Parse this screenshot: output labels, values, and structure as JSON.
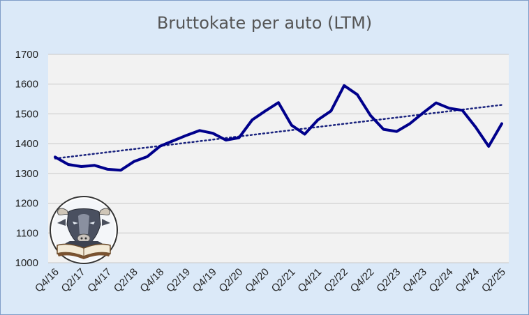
{
  "chart_data": {
    "type": "line",
    "title": "Bruttokate per auto (LTM)",
    "xlabel": "",
    "ylabel": "",
    "ylim": [
      1000,
      1700
    ],
    "yticks": [
      1000,
      1100,
      1200,
      1300,
      1400,
      1500,
      1600,
      1700
    ],
    "grid": true,
    "colors": {
      "series": "#00008b",
      "trend": "#1a237e",
      "background": "#dbe9f8",
      "plot": "#f2f2f2"
    },
    "x": [
      "Q4/16",
      "Q1/17",
      "Q2/17",
      "Q3/17",
      "Q4/17",
      "Q1/18",
      "Q2/18",
      "Q3/18",
      "Q4/18",
      "Q1/19",
      "Q2/19",
      "Q3/19",
      "Q4/19",
      "Q1/20",
      "Q2/20",
      "Q3/20",
      "Q4/20",
      "Q1/21",
      "Q2/21",
      "Q3/21",
      "Q4/21",
      "Q1/22",
      "Q2/22",
      "Q3/22",
      "Q4/22",
      "Q1/23",
      "Q2/23",
      "Q3/23",
      "Q4/23",
      "Q1/24",
      "Q2/24",
      "Q3/24",
      "Q4/24",
      "Q1/25",
      "Q2/25"
    ],
    "x_tick_labels": [
      "Q4/16",
      "Q2/17",
      "Q4/17",
      "Q2/18",
      "Q4/18",
      "Q2/19",
      "Q4/19",
      "Q2/20",
      "Q4/20",
      "Q2/21",
      "Q4/21",
      "Q2/22",
      "Q4/22",
      "Q2/23",
      "Q4/23",
      "Q2/24",
      "Q4/24",
      "Q2/25"
    ],
    "series": [
      {
        "values": [
          1355,
          1330,
          1323,
          1327,
          1314,
          1311,
          1340,
          1356,
          1392,
          1410,
          1428,
          1444,
          1435,
          1412,
          1420,
          1480,
          1510,
          1538,
          1462,
          1432,
          1480,
          1510,
          1595,
          1565,
          1495,
          1448,
          1441,
          1467,
          1503,
          1537,
          1519,
          1512,
          1456,
          1391,
          1467
        ]
      }
    ],
    "trendline": {
      "type": "linear",
      "style": "dotted"
    },
    "logo": "bull-reading-book-logo"
  }
}
